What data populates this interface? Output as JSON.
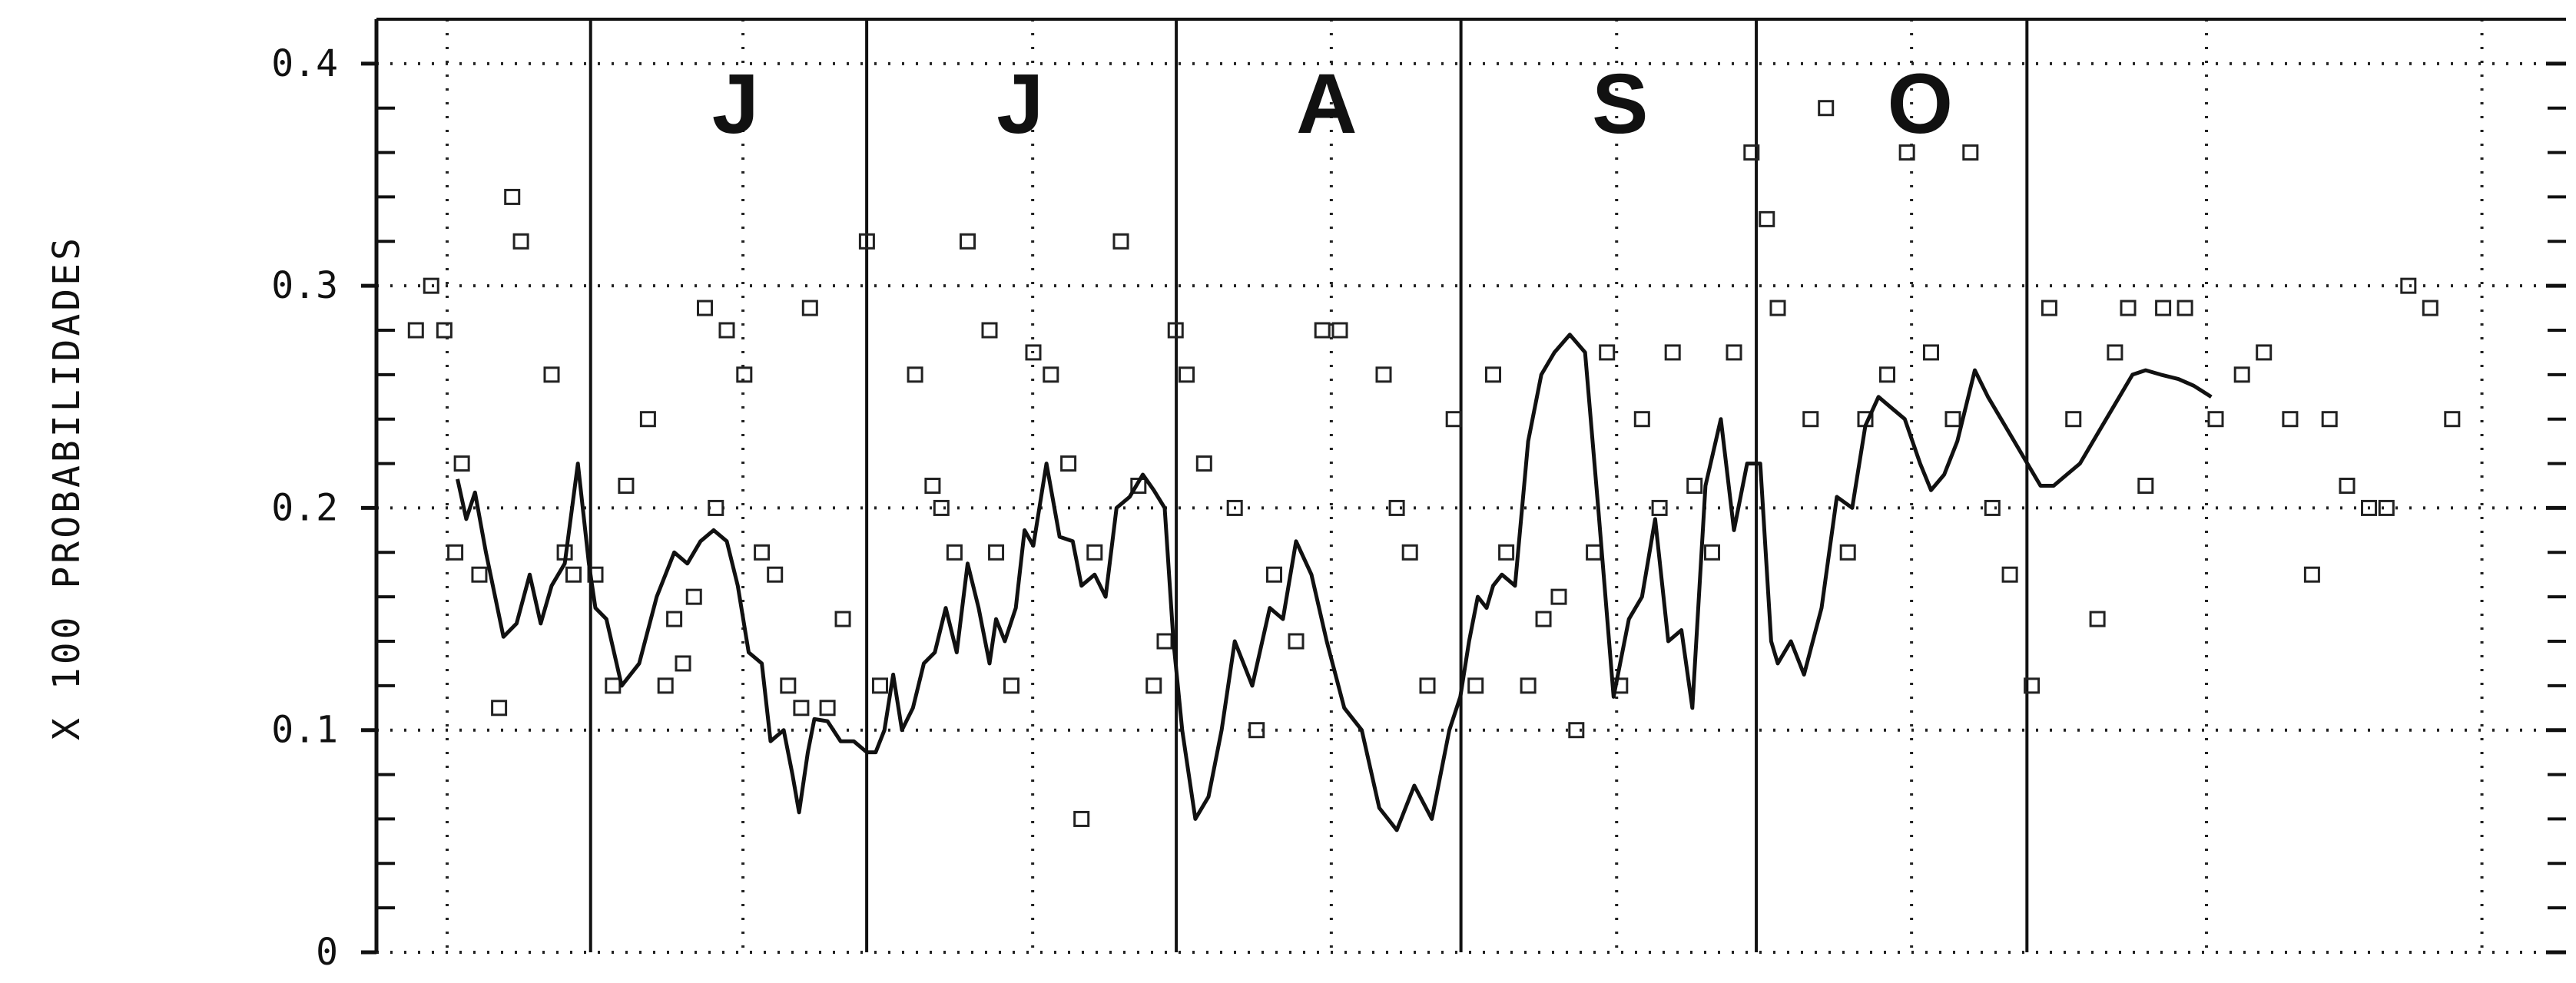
{
  "chart_data": {
    "type": "line",
    "ylabel": "X 100 PROBABILIDADES",
    "ylim": [
      0,
      0.42
    ],
    "xlim": [
      0,
      1
    ],
    "yticks": [
      {
        "value": 0.0,
        "label": "0"
      },
      {
        "value": 0.1,
        "label": "0.1"
      },
      {
        "value": 0.2,
        "label": "0.2"
      },
      {
        "value": 0.3,
        "label": "0.3"
      },
      {
        "value": 0.4,
        "label": "0.4"
      }
    ],
    "month_labels": [
      {
        "text": "J",
        "x": 0.164
      },
      {
        "text": "J",
        "x": 0.294
      },
      {
        "text": "A",
        "x": 0.434
      },
      {
        "text": "S",
        "x": 0.568
      },
      {
        "text": "O",
        "x": 0.705
      }
    ],
    "month_boundaries": [
      0.0978,
      0.2239,
      0.3653,
      0.4953,
      0.6302,
      0.7538
    ],
    "vertical_dotted_grid": [
      0.0323,
      0.1674,
      0.2997,
      0.4361,
      0.5664,
      0.7011,
      0.8358,
      0.9616
    ],
    "horizontal_dotted_grid": [
      0.0,
      0.1,
      0.2,
      0.3,
      0.4
    ],
    "grid": true,
    "series": [
      {
        "kind": "line",
        "x": [
          0.037,
          0.041,
          0.045,
          0.05,
          0.058,
          0.064,
          0.07,
          0.075,
          0.08,
          0.086,
          0.092,
          0.097,
          0.1,
          0.105,
          0.112,
          0.12,
          0.128,
          0.136,
          0.142,
          0.148,
          0.154,
          0.16,
          0.165,
          0.17,
          0.176,
          0.18,
          0.186,
          0.19,
          0.193,
          0.197,
          0.2,
          0.206,
          0.212,
          0.218,
          0.224,
          0.228,
          0.232,
          0.236,
          0.24,
          0.245,
          0.25,
          0.255,
          0.26,
          0.265,
          0.27,
          0.275,
          0.28,
          0.283,
          0.287,
          0.292,
          0.296,
          0.3,
          0.306,
          0.312,
          0.318,
          0.322,
          0.328,
          0.333,
          0.338,
          0.344,
          0.35,
          0.355,
          0.36,
          0.364,
          0.368,
          0.374,
          0.38,
          0.386,
          0.392,
          0.4,
          0.408,
          0.414,
          0.42,
          0.427,
          0.434,
          0.442,
          0.45,
          0.458,
          0.466,
          0.474,
          0.482,
          0.49,
          0.495,
          0.499,
          0.503,
          0.507,
          0.51,
          0.514,
          0.52,
          0.526,
          0.532,
          0.538,
          0.545,
          0.552,
          0.558,
          0.565,
          0.572,
          0.578,
          0.584,
          0.59,
          0.596,
          0.601,
          0.607,
          0.614,
          0.62,
          0.626,
          0.632,
          0.637,
          0.64,
          0.646,
          0.652,
          0.66,
          0.667,
          0.674,
          0.68,
          0.686,
          0.692,
          0.698,
          0.705,
          0.71,
          0.716,
          0.722,
          0.73,
          0.736,
          0.742,
          0.748,
          0.754,
          0.76,
          0.766,
          0.772,
          0.778,
          0.784,
          0.79,
          0.796,
          0.802,
          0.808,
          0.815,
          0.823,
          0.83,
          0.838
        ],
        "y": [
          0.213,
          0.195,
          0.207,
          0.18,
          0.142,
          0.148,
          0.17,
          0.148,
          0.165,
          0.175,
          0.22,
          0.175,
          0.155,
          0.15,
          0.12,
          0.13,
          0.16,
          0.18,
          0.175,
          0.185,
          0.19,
          0.185,
          0.165,
          0.135,
          0.13,
          0.095,
          0.1,
          0.08,
          0.063,
          0.09,
          0.105,
          0.104,
          0.095,
          0.095,
          0.09,
          0.09,
          0.1,
          0.125,
          0.1,
          0.11,
          0.13,
          0.135,
          0.155,
          0.135,
          0.175,
          0.155,
          0.13,
          0.15,
          0.14,
          0.155,
          0.19,
          0.183,
          0.22,
          0.187,
          0.185,
          0.165,
          0.17,
          0.16,
          0.2,
          0.205,
          0.215,
          0.208,
          0.2,
          0.14,
          0.1,
          0.06,
          0.07,
          0.1,
          0.14,
          0.12,
          0.155,
          0.15,
          0.185,
          0.17,
          0.14,
          0.11,
          0.1,
          0.065,
          0.055,
          0.075,
          0.06,
          0.1,
          0.115,
          0.14,
          0.16,
          0.155,
          0.165,
          0.17,
          0.165,
          0.23,
          0.26,
          0.27,
          0.278,
          0.27,
          0.2,
          0.115,
          0.15,
          0.16,
          0.195,
          0.14,
          0.145,
          0.11,
          0.21,
          0.24,
          0.19,
          0.22,
          0.22,
          0.14,
          0.13,
          0.14,
          0.125,
          0.155,
          0.205,
          0.2,
          0.237,
          0.25,
          0.245,
          0.24,
          0.22,
          0.208,
          0.215,
          0.23,
          0.262,
          0.25,
          0.24,
          0.23,
          0.22,
          0.21,
          0.21,
          0.215,
          0.22,
          0.23,
          0.24,
          0.25,
          0.26,
          0.262,
          0.26,
          0.258,
          0.255,
          0.25
        ],
        "color": "#111111"
      },
      {
        "kind": "scatter",
        "marker": "square-outline",
        "x": [
          0.018,
          0.025,
          0.031,
          0.036,
          0.039,
          0.047,
          0.056,
          0.062,
          0.066,
          0.08,
          0.086,
          0.09,
          0.1,
          0.108,
          0.114,
          0.124,
          0.132,
          0.136,
          0.14,
          0.145,
          0.15,
          0.155,
          0.16,
          0.168,
          0.176,
          0.182,
          0.188,
          0.194,
          0.198,
          0.206,
          0.213,
          0.224,
          0.23,
          0.246,
          0.254,
          0.258,
          0.264,
          0.27,
          0.28,
          0.283,
          0.29,
          0.3,
          0.308,
          0.316,
          0.322,
          0.328,
          0.34,
          0.348,
          0.355,
          0.36,
          0.365,
          0.37,
          0.378,
          0.392,
          0.402,
          0.41,
          0.42,
          0.432,
          0.44,
          0.46,
          0.466,
          0.472,
          0.48,
          0.492,
          0.502,
          0.51,
          0.516,
          0.526,
          0.533,
          0.54,
          0.548,
          0.556,
          0.562,
          0.568,
          0.578,
          0.586,
          0.592,
          0.602,
          0.61,
          0.62,
          0.628,
          0.635,
          0.64,
          0.655,
          0.662,
          0.672,
          0.68,
          0.69,
          0.699,
          0.71,
          0.72,
          0.728,
          0.738,
          0.746,
          0.756,
          0.764,
          0.775,
          0.786,
          0.794,
          0.8,
          0.808,
          0.816,
          0.826,
          0.84,
          0.852,
          0.862,
          0.874,
          0.884,
          0.892,
          0.9,
          0.91,
          0.918,
          0.928,
          0.938,
          0.948
        ],
        "y": [
          0.28,
          0.3,
          0.28,
          0.18,
          0.22,
          0.17,
          0.11,
          0.34,
          0.32,
          0.26,
          0.18,
          0.17,
          0.17,
          0.12,
          0.21,
          0.24,
          0.12,
          0.15,
          0.13,
          0.16,
          0.29,
          0.2,
          0.28,
          0.26,
          0.18,
          0.17,
          0.12,
          0.11,
          0.29,
          0.11,
          0.15,
          0.32,
          0.12,
          0.26,
          0.21,
          0.2,
          0.18,
          0.32,
          0.28,
          0.18,
          0.12,
          0.27,
          0.26,
          0.22,
          0.06,
          0.18,
          0.32,
          0.21,
          0.12,
          0.14,
          0.28,
          0.26,
          0.22,
          0.2,
          0.1,
          0.17,
          0.14,
          0.28,
          0.28,
          0.26,
          0.2,
          0.18,
          0.12,
          0.24,
          0.12,
          0.26,
          0.18,
          0.12,
          0.15,
          0.16,
          0.1,
          0.18,
          0.27,
          0.12,
          0.24,
          0.2,
          0.27,
          0.21,
          0.18,
          0.27,
          0.36,
          0.33,
          0.29,
          0.24,
          0.38,
          0.18,
          0.24,
          0.26,
          0.36,
          0.27,
          0.24,
          0.36,
          0.2,
          0.17,
          0.12,
          0.29,
          0.24,
          0.15,
          0.27,
          0.29,
          0.21,
          0.29,
          0.29,
          0.24,
          0.26,
          0.27,
          0.24,
          0.17,
          0.24,
          0.21,
          0.2,
          0.2,
          0.3,
          0.29,
          0.24
        ],
        "color": "#222222"
      }
    ]
  }
}
